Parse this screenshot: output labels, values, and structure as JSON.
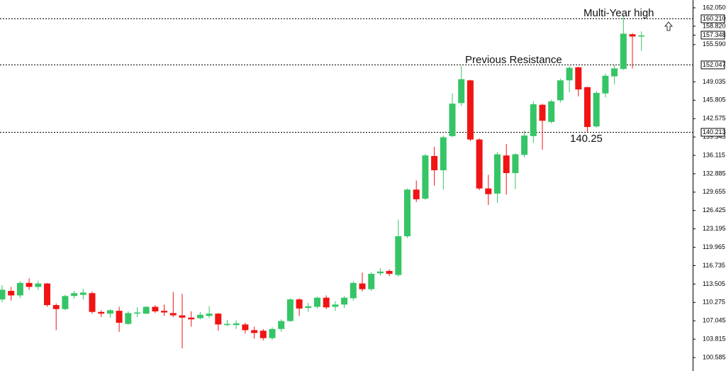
{
  "chart_data": {
    "type": "candlestick",
    "open": [
      110.8,
      112.3,
      111.5,
      113.7,
      113.0,
      113.6,
      109.8,
      109.1,
      111.4,
      111.6,
      111.9,
      108.6,
      108.3,
      108.8,
      106.5,
      108.3,
      108.3,
      109.5,
      108.8,
      108.4,
      108.0,
      107.6,
      107.5,
      107.9,
      108.3,
      106.3,
      106.3,
      106.4,
      105.4,
      105.3,
      104.0,
      105.6,
      107.0,
      110.8,
      109.3,
      109.5,
      111.1,
      109.5,
      109.9,
      111.0,
      113.6,
      112.6,
      115.4,
      115.8,
      115.1,
      121.9,
      130.1,
      128.5,
      136.0,
      133.5,
      139.5,
      145.3,
      149.3,
      138.9,
      130.3,
      129.4,
      136.1,
      133.0,
      136.2,
      139.5,
      145.0,
      142.0,
      145.8,
      149.3,
      151.6,
      148.1,
      141.2,
      147.0,
      150.0,
      151.3,
      157.4,
      157.0
    ],
    "high": [
      113.3,
      113.0,
      114.0,
      114.5,
      114.1,
      113.7,
      110.1,
      111.6,
      112.3,
      112.7,
      112.2,
      108.9,
      109.1,
      109.5,
      108.7,
      109.4,
      109.6,
      109.8,
      109.9,
      112.1,
      111.8,
      108.7,
      108.6,
      109.6,
      108.4,
      107.2,
      107.1,
      106.7,
      106.0,
      105.6,
      105.9,
      107.3,
      111.0,
      111.0,
      110.2,
      111.3,
      111.5,
      110.5,
      111.4,
      114.0,
      115.5,
      115.6,
      116.3,
      116.1,
      124.8,
      130.3,
      131.7,
      136.4,
      137.6,
      139.6,
      147.0,
      151.8,
      149.4,
      139.1,
      132.7,
      136.7,
      138.1,
      136.5,
      140.4,
      145.6,
      145.2,
      145.9,
      149.6,
      151.8,
      151.7,
      148.2,
      147.4,
      150.5,
      152.0,
      160.8,
      157.6,
      157.9
    ],
    "low": [
      110.3,
      110.6,
      111.0,
      112.5,
      112.5,
      109.5,
      105.4,
      108.9,
      110.9,
      110.8,
      108.3,
      107.7,
      107.6,
      105.1,
      106.3,
      107.7,
      108.2,
      108.4,
      107.9,
      107.7,
      102.2,
      106.0,
      107.3,
      107.5,
      105.3,
      106.1,
      105.6,
      104.8,
      103.9,
      103.6,
      103.7,
      105.1,
      106.8,
      107.9,
      108.6,
      109.2,
      109.1,
      108.8,
      109.3,
      110.6,
      112.2,
      112.3,
      115.0,
      114.9,
      114.8,
      121.6,
      127.9,
      128.3,
      130.8,
      130.1,
      139.3,
      144.8,
      138.6,
      130.0,
      127.4,
      127.8,
      129.2,
      130.2,
      135.7,
      138.3,
      137.1,
      141.7,
      145.4,
      147.2,
      146.5,
      140.25,
      141.0,
      146.3,
      148.6,
      151.1,
      151.4,
      154.5
    ],
    "close": [
      112.5,
      111.5,
      113.7,
      113.0,
      113.6,
      109.8,
      109.1,
      111.4,
      111.9,
      112.0,
      108.6,
      108.3,
      108.9,
      106.7,
      108.4,
      108.5,
      109.5,
      108.7,
      108.5,
      108.0,
      107.6,
      107.3,
      108.1,
      108.3,
      106.4,
      106.5,
      106.6,
      105.4,
      104.9,
      104.0,
      105.6,
      107.0,
      110.8,
      109.2,
      109.6,
      111.1,
      109.4,
      109.9,
      111.1,
      113.7,
      112.6,
      115.3,
      115.7,
      115.3,
      121.9,
      130.1,
      128.4,
      136.1,
      133.5,
      139.3,
      145.2,
      149.5,
      138.9,
      130.3,
      129.3,
      136.3,
      133.0,
      136.3,
      139.6,
      145.1,
      142.2,
      145.6,
      149.3,
      151.5,
      147.7,
      141.1,
      147.1,
      150.1,
      151.4,
      157.5,
      157.0,
      157.2
    ],
    "up_color": "#36c566",
    "down_color": "#f01414",
    "ylim": [
      98.22,
      163.42
    ],
    "yticks": [
      {
        "value": 162.05,
        "label": "162.050"
      },
      {
        "value": 158.82,
        "label": "158.820"
      },
      {
        "value": 155.59,
        "label": "155.590"
      },
      {
        "value": 149.035,
        "label": "149.035"
      },
      {
        "value": 145.805,
        "label": "145.805"
      },
      {
        "value": 142.575,
        "label": "142.575"
      },
      {
        "value": 139.345,
        "label": "139.345"
      },
      {
        "value": 136.115,
        "label": "136.115"
      },
      {
        "value": 132.885,
        "label": "132.885"
      },
      {
        "value": 129.655,
        "label": "129.655"
      },
      {
        "value": 126.425,
        "label": "126.425"
      },
      {
        "value": 123.195,
        "label": "123.195"
      },
      {
        "value": 119.965,
        "label": "119.965"
      },
      {
        "value": 116.735,
        "label": "116.735"
      },
      {
        "value": 113.505,
        "label": "113.505"
      },
      {
        "value": 110.275,
        "label": "110.275"
      },
      {
        "value": 107.045,
        "label": "107.045"
      },
      {
        "value": 103.815,
        "label": "103.815"
      },
      {
        "value": 100.585,
        "label": "100.585"
      }
    ],
    "levels": [
      {
        "value": 160.21,
        "label": "160.210"
      },
      {
        "value": 152.047,
        "label": "152.047"
      },
      {
        "value": 140.213,
        "label": "140.213"
      }
    ],
    "current_price": {
      "value": 157.348,
      "label": "157.348"
    },
    "annotations": [
      "Multi-Year high",
      "Previous Resistance",
      "140.25"
    ]
  }
}
